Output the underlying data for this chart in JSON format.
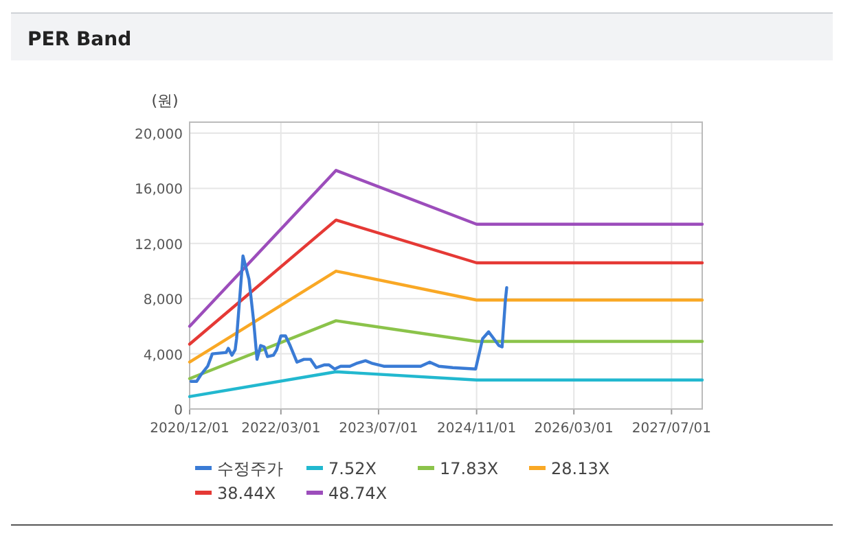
{
  "chart_data": {
    "type": "line",
    "title": "PER Band",
    "ylabel": "(원)",
    "xlim": [
      "2020-12-01",
      "2027-12-01"
    ],
    "xticks": [
      {
        "value": "2020-12-01",
        "label": "2020/12/01"
      },
      {
        "value": "2022-03-01",
        "label": "2022/03/01"
      },
      {
        "value": "2023-07-01",
        "label": "2023/07/01"
      },
      {
        "value": "2024-11-01",
        "label": "2024/11/01"
      },
      {
        "value": "2026-03-01",
        "label": "2026/03/01"
      },
      {
        "value": "2027-07-01",
        "label": "2027/07/01"
      }
    ],
    "ylim": [
      0,
      20800
    ],
    "yticks": [
      {
        "value": 0,
        "label": "0"
      },
      {
        "value": 4000,
        "label": "4,000"
      },
      {
        "value": 8000,
        "label": "8,000"
      },
      {
        "value": 12000,
        "label": "12,000"
      },
      {
        "value": 16000,
        "label": "16,000"
      },
      {
        "value": 20000,
        "label": "20,000"
      }
    ],
    "grid": true,
    "legend": "bottom",
    "marker": "none",
    "line_style": "solid",
    "series": [
      {
        "name": "수정주가",
        "color": "#3a7bd5",
        "x": [
          "2020-12-08",
          "2021-01-05",
          "2021-01-27",
          "2021-03-01",
          "2021-03-24",
          "2021-06-01",
          "2021-06-12",
          "2021-06-30",
          "2021-07-16",
          "2021-07-23",
          "2021-08-24",
          "2021-09-23",
          "2021-10-16",
          "2021-11-02",
          "2021-11-20",
          "2021-12-08",
          "2021-12-24",
          "2022-01-23",
          "2022-02-08",
          "2022-03-01",
          "2022-03-24",
          "2022-04-16",
          "2022-05-20",
          "2022-06-24",
          "2022-07-27",
          "2022-08-24",
          "2022-10-05",
          "2022-10-27",
          "2022-11-24",
          "2022-12-24",
          "2023-02-08",
          "2023-03-12",
          "2023-04-27",
          "2023-06-01",
          "2023-07-27",
          "2023-10-27",
          "2024-01-27",
          "2024-03-12",
          "2024-04-27",
          "2024-07-05",
          "2024-10-27",
          "2024-12-01",
          "2024-12-31",
          "2025-02-20",
          "2025-03-08",
          "2025-03-24",
          "2025-03-31"
        ],
        "values": [
          2000,
          2000,
          2500,
          3100,
          4000,
          4100,
          4400,
          3900,
          4300,
          5100,
          11100,
          9400,
          6400,
          3600,
          4600,
          4500,
          3800,
          3900,
          4300,
          5300,
          5300,
          4600,
          3400,
          3600,
          3600,
          3000,
          3200,
          3200,
          2900,
          3100,
          3100,
          3300,
          3500,
          3300,
          3100,
          3100,
          3100,
          3400,
          3100,
          3000,
          2900,
          5100,
          5600,
          4600,
          4500,
          7800,
          8800
        ]
      },
      {
        "name": "7.52X",
        "color": "#22b8cf",
        "x": [
          "2020-12-01",
          "2022-12-01",
          "2024-11-01",
          "2027-12-01"
        ],
        "values": [
          900,
          2700,
          2100,
          2100
        ]
      },
      {
        "name": "17.83X",
        "color": "#8bc34a",
        "x": [
          "2020-12-01",
          "2022-12-01",
          "2024-11-01",
          "2027-12-01"
        ],
        "values": [
          2200,
          6400,
          4900,
          4900
        ]
      },
      {
        "name": "28.13X",
        "color": "#f9a825",
        "x": [
          "2020-12-01",
          "2022-12-01",
          "2024-11-01",
          "2027-12-01"
        ],
        "values": [
          3400,
          10000,
          7900,
          7900
        ]
      },
      {
        "name": "38.44X",
        "color": "#e53935",
        "x": [
          "2020-12-01",
          "2022-12-01",
          "2024-11-01",
          "2027-12-01"
        ],
        "values": [
          4700,
          13700,
          10600,
          10600
        ]
      },
      {
        "name": "48.74X",
        "color": "#9c4dbb",
        "x": [
          "2020-12-01",
          "2022-12-01",
          "2024-11-01",
          "2027-12-01"
        ],
        "values": [
          6000,
          17300,
          13400,
          13400
        ]
      }
    ]
  }
}
